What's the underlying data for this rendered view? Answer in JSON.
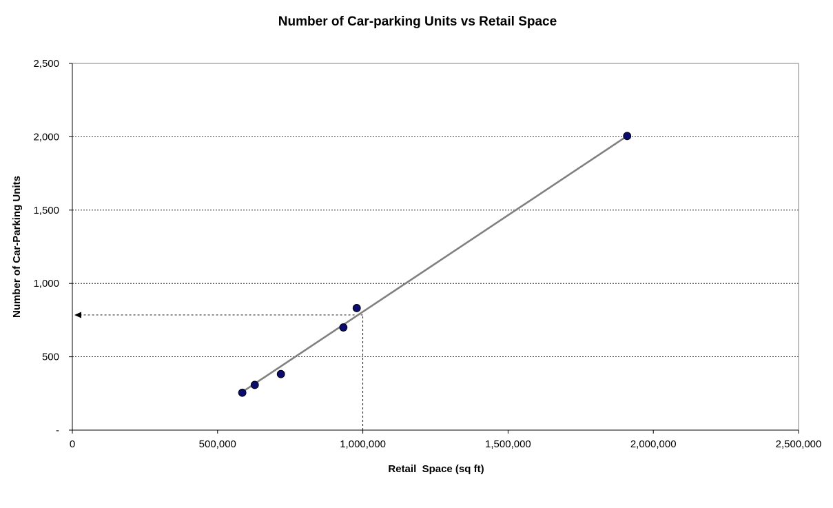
{
  "chart_data": {
    "type": "scatter",
    "title": "Number of Car-parking Units vs Retail Space",
    "xlabel": "Retail  Space (sq ft)",
    "ylabel": "Number of Car-Parking Units",
    "xlim": [
      0,
      2500000
    ],
    "ylim": [
      0,
      2500
    ],
    "x_ticks": [
      {
        "value": 0,
        "label": "0"
      },
      {
        "value": 500000,
        "label": "500,000"
      },
      {
        "value": 1000000,
        "label": "1,000,000"
      },
      {
        "value": 1500000,
        "label": "1,500,000"
      },
      {
        "value": 2000000,
        "label": "2,000,000"
      },
      {
        "value": 2500000,
        "label": "2,500,000"
      }
    ],
    "y_ticks": [
      {
        "value": 0,
        "label": "-"
      },
      {
        "value": 500,
        "label": "500"
      },
      {
        "value": 1000,
        "label": "1,000"
      },
      {
        "value": 1500,
        "label": "1,500"
      },
      {
        "value": 2000,
        "label": "2,000"
      },
      {
        "value": 2500,
        "label": "2,500"
      }
    ],
    "grid": "horizontal dashed",
    "series": [
      {
        "points": [
          {
            "x": 585000,
            "y": 255
          },
          {
            "x": 628000,
            "y": 308
          },
          {
            "x": 718000,
            "y": 382
          },
          {
            "x": 933000,
            "y": 700
          },
          {
            "x": 979000,
            "y": 832
          },
          {
            "x": 1910000,
            "y": 2005
          }
        ],
        "color": "#0c0c6e"
      }
    ],
    "trendline": {
      "start": {
        "x": 585000,
        "y": 260
      },
      "end": {
        "x": 1910000,
        "y": 2005
      },
      "color": "#808080"
    },
    "projection": {
      "x": 1000000,
      "y": 785
    }
  }
}
